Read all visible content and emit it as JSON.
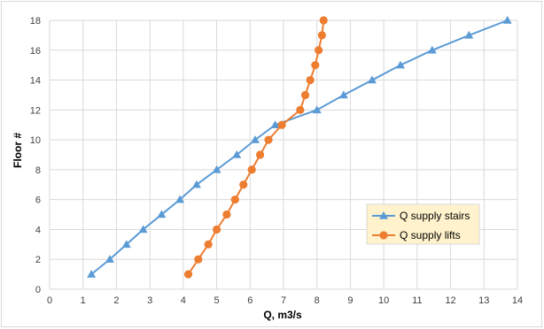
{
  "chart_data": {
    "type": "line",
    "xlabel": "Q, m3/s",
    "ylabel": "Floor #",
    "xlim": [
      0,
      14
    ],
    "ylim": [
      0,
      18
    ],
    "xticks": [
      0,
      1,
      2,
      3,
      4,
      5,
      6,
      7,
      8,
      9,
      10,
      11,
      12,
      13,
      14
    ],
    "yticks": [
      0,
      2,
      4,
      6,
      8,
      10,
      12,
      14,
      16,
      18
    ],
    "grid": true,
    "legend_position": "center-right",
    "series": [
      {
        "name": "Q supply stairs",
        "color": "#5b9bd5",
        "marker": "triangle",
        "points": [
          [
            1.25,
            1
          ],
          [
            1.8,
            2
          ],
          [
            2.3,
            3
          ],
          [
            2.8,
            4
          ],
          [
            3.35,
            5
          ],
          [
            3.9,
            6
          ],
          [
            4.4,
            7
          ],
          [
            5.0,
            8
          ],
          [
            5.6,
            9
          ],
          [
            6.15,
            10
          ],
          [
            6.75,
            11
          ],
          [
            8.0,
            12
          ],
          [
            8.8,
            13
          ],
          [
            9.65,
            14
          ],
          [
            10.5,
            15
          ],
          [
            11.45,
            16
          ],
          [
            12.55,
            17
          ],
          [
            13.7,
            18
          ]
        ]
      },
      {
        "name": "Q supply lifts",
        "color": "#ed7d31",
        "marker": "circle",
        "points": [
          [
            4.15,
            1
          ],
          [
            4.45,
            2
          ],
          [
            4.75,
            3
          ],
          [
            5.0,
            4
          ],
          [
            5.3,
            5
          ],
          [
            5.55,
            6
          ],
          [
            5.8,
            7
          ],
          [
            6.05,
            8
          ],
          [
            6.3,
            9
          ],
          [
            6.55,
            10
          ],
          [
            6.95,
            11
          ],
          [
            7.5,
            12
          ],
          [
            7.65,
            13
          ],
          [
            7.8,
            14
          ],
          [
            7.95,
            15
          ],
          [
            8.05,
            16
          ],
          [
            8.15,
            17
          ],
          [
            8.2,
            18
          ]
        ]
      }
    ]
  }
}
